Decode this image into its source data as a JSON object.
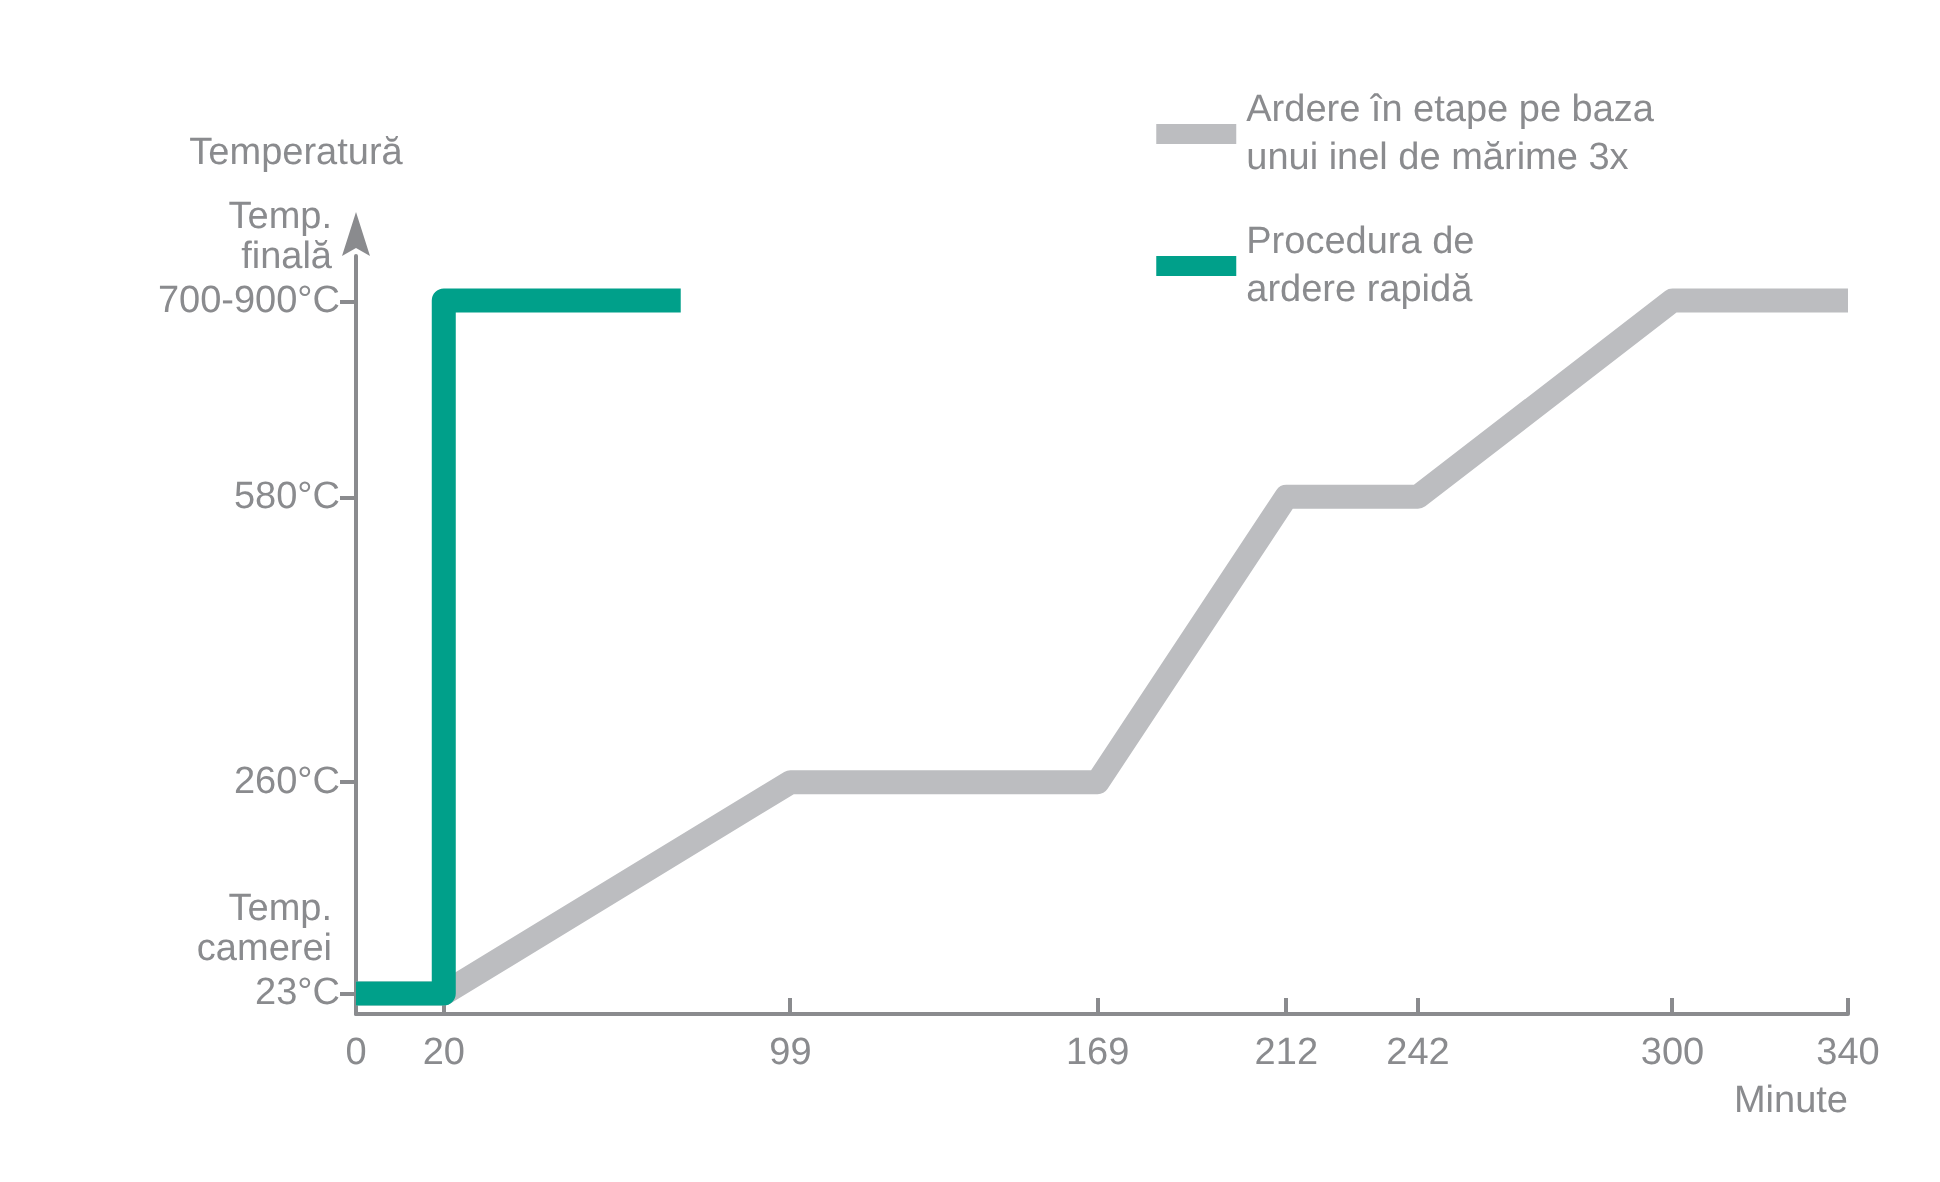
{
  "chart_data": {
    "type": "line",
    "ylabel": "Temperatură",
    "xlabel": "Minute",
    "xlim": [
      0,
      340
    ],
    "xticks": [
      0,
      20,
      99,
      169,
      212,
      242,
      300,
      340
    ],
    "ylim": [
      0,
      850
    ],
    "yticks": [
      {
        "value": 23,
        "label": "23°C"
      },
      {
        "value": 260,
        "label": "260°C"
      },
      {
        "value": 580,
        "label": "580°C"
      },
      {
        "value": 800,
        "label": "700-900°C"
      }
    ],
    "annotations": [
      "Temp.\ncamerei",
      "Temp.\nfinală"
    ],
    "series": [
      {
        "name": "Ardere în etape pe baza\nunui inel de mărime 3x",
        "color": "#bcbdc0",
        "x": [
          0,
          20,
          99,
          169,
          212,
          242,
          300,
          340
        ],
        "values": [
          23,
          23,
          260,
          260,
          580,
          580,
          800,
          800
        ]
      },
      {
        "name": "Procedura de\nardere rapidă",
        "color": "#00a08a",
        "x": [
          0,
          20,
          20,
          74
        ],
        "values": [
          23,
          23,
          800,
          800
        ]
      }
    ],
    "legend": "top right",
    "grid": false,
    "marker": "none",
    "line_style": "solid"
  }
}
